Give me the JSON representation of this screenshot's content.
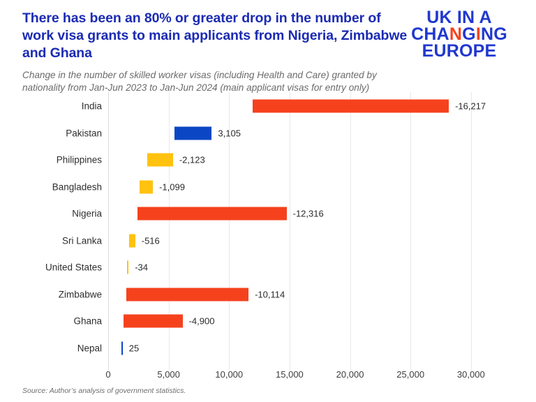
{
  "header": {
    "title": "There has been an 80% or greater drop in the number of work visa grants to main applicants from Nigeria, Zimbabwe and Ghana",
    "subtitle": "Change in the number of skilled worker visas (including Health and Care) granted by nationality from Jan-Jun 2023 to Jan-Jun 2024 (main applicant visas for entry only)"
  },
  "logo": {
    "name": "UK in a Changing Europe",
    "blue": "#2138cf",
    "orange": "#f5431e",
    "lines": [
      [
        {
          "t": "UK IN A",
          "c": "blue"
        }
      ],
      [
        {
          "t": "CHA",
          "c": "blue"
        },
        {
          "t": "N",
          "c": "orange"
        },
        {
          "t": "G",
          "c": "blue"
        },
        {
          "t": "I",
          "c": "orange"
        },
        {
          "t": "NG",
          "c": "blue"
        }
      ],
      [
        {
          "t": "EUROPE",
          "c": "blue"
        }
      ]
    ]
  },
  "colors": {
    "title_blue": "#1b2bb3",
    "bar_orange": "#f5421d",
    "bar_blue": "#0b46c4",
    "bar_yellow": "#ffc20e"
  },
  "chart_data": {
    "type": "bar",
    "orientation": "horizontal",
    "title": "There has been an 80% or greater drop in the number of work visa grants to main applicants from Nigeria, Zimbabwe and Ghana",
    "subtitle": "Change in the number of skilled worker visas (including Health and Care) granted by nationality from Jan-Jun 2023 to Jan-Jun 2024 (main applicant visas for entry only)",
    "xlabel": "",
    "ylabel": "",
    "xlim": [
      0,
      34800
    ],
    "grid": true,
    "legend": false,
    "categories": [
      "India",
      "Pakistan",
      "Philippines",
      "Bangladesh",
      "Nigeria",
      "Sri Lanka",
      "United States",
      "Zimbabwe",
      "Ghana",
      "Nepal"
    ],
    "values": [
      -16217,
      3105,
      -2123,
      -1099,
      -12316,
      -516,
      -34,
      -10114,
      -4900,
      25
    ],
    "value_labels": [
      "-16,217",
      "3,105",
      "-2,123",
      "-1,099",
      "-12,316",
      "-516",
      "-34",
      "-10,114",
      "-4,900",
      "25"
    ],
    "bars": [
      {
        "category": "India",
        "change": -16217,
        "label": "-16,217",
        "range_from": 11950,
        "range_to": 28167,
        "color": "#f5421d"
      },
      {
        "category": "Pakistan",
        "change": 3105,
        "label": "3,105",
        "range_from": 5460,
        "range_to": 8565,
        "color": "#0b46c4"
      },
      {
        "category": "Philippines",
        "change": -2123,
        "label": "-2,123",
        "range_from": 3235,
        "range_to": 5358,
        "color": "#ffc20e"
      },
      {
        "category": "Bangladesh",
        "change": -1099,
        "label": "-1,099",
        "range_from": 2600,
        "range_to": 3699,
        "color": "#ffc20e"
      },
      {
        "category": "Nigeria",
        "change": -12316,
        "label": "-12,316",
        "range_from": 2437,
        "range_to": 14753,
        "color": "#f5421d"
      },
      {
        "category": "Sri Lanka",
        "change": -516,
        "label": "-516",
        "range_from": 1720,
        "range_to": 2236,
        "color": "#ffc20e"
      },
      {
        "category": "United States",
        "change": -34,
        "label": "-34",
        "range_from": 1570,
        "range_to": 1604,
        "color": "#ffc20e"
      },
      {
        "category": "Zimbabwe",
        "change": -10114,
        "label": "-10,114",
        "range_from": 1490,
        "range_to": 11604,
        "color": "#f5421d"
      },
      {
        "category": "Ghana",
        "change": -4900,
        "label": "-4,900",
        "range_from": 1250,
        "range_to": 6150,
        "color": "#f5421d"
      },
      {
        "category": "Nepal",
        "change": 25,
        "label": "25",
        "range_from": 1085,
        "range_to": 1110,
        "color": "#0b46c4"
      }
    ],
    "x_ticks": [
      {
        "value": 0,
        "label": "0"
      },
      {
        "value": 5000,
        "label": "5,000"
      },
      {
        "value": 10000,
        "label": "10,000"
      },
      {
        "value": 15000,
        "label": "15,000"
      },
      {
        "value": 20000,
        "label": "20,000"
      },
      {
        "value": 25000,
        "label": "25,000"
      },
      {
        "value": 30000,
        "label": "30,000"
      }
    ]
  },
  "footer": {
    "source": "Source: Author’s analysis of government statistics."
  }
}
